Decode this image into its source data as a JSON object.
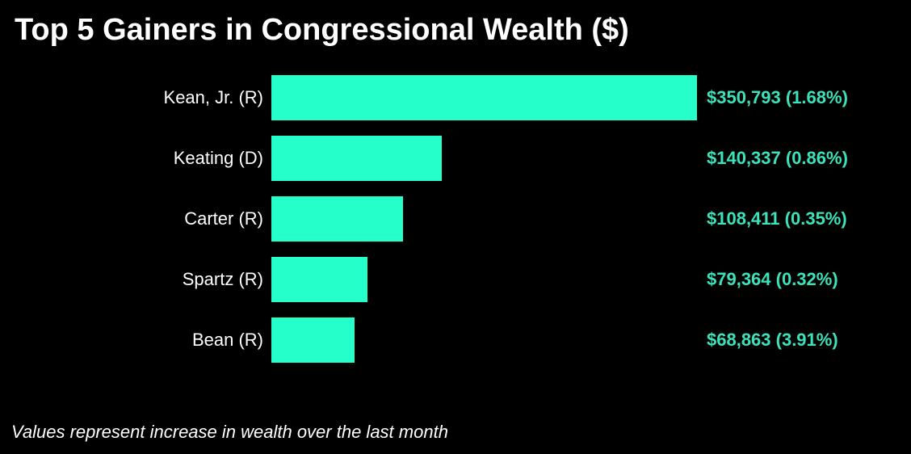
{
  "chart_data": {
    "type": "bar",
    "orientation": "horizontal",
    "title": "Top 5 Gainers in Congressional Wealth ($)",
    "note": "Values represent increase in wealth over the last month",
    "categories": [
      "Kean, Jr. (R)",
      "Keating (D)",
      "Carter (R)",
      "Spartz (R)",
      "Bean (R)"
    ],
    "values": [
      350793,
      140337,
      108411,
      79364,
      68863
    ],
    "percent_changes": [
      1.68,
      0.86,
      0.35,
      0.32,
      3.91
    ],
    "value_labels": [
      "$350,793 (1.68%)",
      "$140,337 (0.86%)",
      "$108,411 (0.35%)",
      "$79,364 (0.32%)",
      "$68,863 (3.91%)"
    ],
    "xlim": [
      0,
      350793
    ],
    "grid": false,
    "legend": "none",
    "background_color": "#000000",
    "bar_color": "#25ffc9",
    "value_label_color": "#3ce2ba",
    "category_label_color": "#ffffff",
    "title_color": "#ffffff"
  }
}
